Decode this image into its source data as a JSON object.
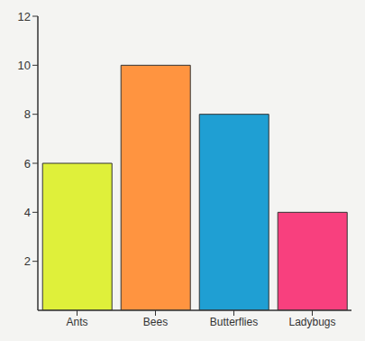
{
  "chart_data": {
    "type": "bar",
    "categories": [
      "Ants",
      "Bees",
      "Butterflies",
      "Ladybugs"
    ],
    "values": [
      6,
      10,
      8,
      4
    ],
    "colors": [
      "#dff03a",
      "#ff9440",
      "#1f9fd3",
      "#f8407e"
    ],
    "ylim": [
      0,
      12
    ],
    "yticks": [
      2,
      4,
      6,
      8,
      10,
      12
    ],
    "grid": false
  }
}
